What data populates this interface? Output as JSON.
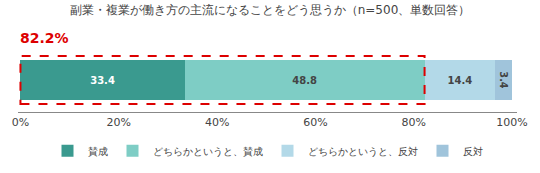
{
  "chart_data": {
    "type": "bar",
    "orientation": "horizontal",
    "stacked": true,
    "title": "副業・複業が働き方の主流になることをどう思うか（n=500、単数回答）",
    "categories": [
      null
    ],
    "series": [
      {
        "name": "賛成",
        "color": "#3a9a8f",
        "values": [
          33.4
        ]
      },
      {
        "name": "どちらかというと、賛成",
        "color": "#7ecdc5",
        "values": [
          48.8
        ]
      },
      {
        "name": "どちらかというと、反対",
        "color": "#b3d9e8",
        "values": [
          14.4
        ]
      },
      {
        "name": "反対",
        "color": "#a0c4db",
        "values": [
          3.4
        ]
      }
    ],
    "xlim": [
      -0.5,
      101
    ],
    "xticks": [
      {
        "value": 0,
        "label": "0%"
      },
      {
        "value": 20,
        "label": "20%"
      },
      {
        "value": 40,
        "label": "40%"
      },
      {
        "value": 60,
        "label": "60%"
      },
      {
        "value": 80,
        "label": "80%"
      },
      {
        "value": 100,
        "label": "100%"
      }
    ],
    "grid": false,
    "legend": "bottom",
    "data_labels": true,
    "tick_labels": "x",
    "annotations": [
      {
        "text": "82.2%",
        "color": "#dd0000"
      }
    ]
  }
}
